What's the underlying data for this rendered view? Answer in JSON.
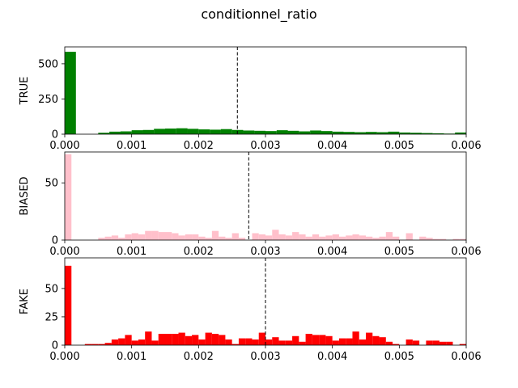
{
  "figure": {
    "title": "conditionnel_ratio"
  },
  "chart_data": [
    {
      "type": "bar",
      "ylabel": "TRUE",
      "color": "#008000",
      "xlim": [
        0,
        0.006
      ],
      "ylim": [
        0,
        620
      ],
      "x_ticks": [
        "0.000",
        "0.001",
        "0.002",
        "0.003",
        "0.004",
        "0.005",
        "0.006"
      ],
      "y_ticks": [
        0,
        250,
        500
      ],
      "bin_width": 0.000167,
      "bins": [
        [
          0.0,
          585
        ],
        [
          0.000167,
          0
        ],
        [
          0.000333,
          0
        ],
        [
          0.0005,
          10
        ],
        [
          0.000667,
          18
        ],
        [
          0.000833,
          20
        ],
        [
          0.001,
          28
        ],
        [
          0.001167,
          30
        ],
        [
          0.001333,
          38
        ],
        [
          0.0015,
          40
        ],
        [
          0.001667,
          42
        ],
        [
          0.001833,
          38
        ],
        [
          0.002,
          34
        ],
        [
          0.002167,
          32
        ],
        [
          0.002333,
          36
        ],
        [
          0.0025,
          30
        ],
        [
          0.002667,
          26
        ],
        [
          0.002833,
          24
        ],
        [
          0.003,
          22
        ],
        [
          0.003167,
          28
        ],
        [
          0.003333,
          24
        ],
        [
          0.0035,
          20
        ],
        [
          0.003667,
          26
        ],
        [
          0.003833,
          22
        ],
        [
          0.004,
          18
        ],
        [
          0.004167,
          16
        ],
        [
          0.004333,
          14
        ],
        [
          0.0045,
          16
        ],
        [
          0.004667,
          14
        ],
        [
          0.004833,
          18
        ],
        [
          0.005,
          12
        ],
        [
          0.005167,
          10
        ],
        [
          0.005333,
          8
        ],
        [
          0.0055,
          6
        ],
        [
          0.005667,
          4
        ],
        [
          0.005833,
          12
        ]
      ],
      "mean_line": 0.00258
    },
    {
      "type": "bar",
      "ylabel": "BIASED",
      "color": "#ffc0cb",
      "xlim": [
        0,
        0.006
      ],
      "ylim": [
        0,
        77
      ],
      "x_ticks": [
        "0.000",
        "0.001",
        "0.002",
        "0.003",
        "0.004",
        "0.005",
        "0.006"
      ],
      "y_ticks": [
        0,
        50
      ],
      "bin_width": 0.0001,
      "bins": [
        [
          0.0,
          75
        ],
        [
          0.0001,
          0
        ],
        [
          0.0002,
          0
        ],
        [
          0.0003,
          0
        ],
        [
          0.0004,
          0
        ],
        [
          0.0005,
          2
        ],
        [
          0.0006,
          3
        ],
        [
          0.0007,
          4
        ],
        [
          0.0008,
          2
        ],
        [
          0.0009,
          5
        ],
        [
          0.001,
          6
        ],
        [
          0.0011,
          5
        ],
        [
          0.0012,
          8
        ],
        [
          0.0013,
          8
        ],
        [
          0.0014,
          7
        ],
        [
          0.0015,
          7
        ],
        [
          0.0016,
          6
        ],
        [
          0.0017,
          4
        ],
        [
          0.0018,
          5
        ],
        [
          0.0019,
          5
        ],
        [
          0.002,
          3
        ],
        [
          0.0021,
          2
        ],
        [
          0.0022,
          8
        ],
        [
          0.0023,
          3
        ],
        [
          0.0024,
          2
        ],
        [
          0.0025,
          6
        ],
        [
          0.0026,
          2
        ],
        [
          0.0027,
          0
        ],
        [
          0.0028,
          6
        ],
        [
          0.0029,
          5
        ],
        [
          0.003,
          4
        ],
        [
          0.0031,
          9
        ],
        [
          0.0032,
          5
        ],
        [
          0.0033,
          4
        ],
        [
          0.0034,
          7
        ],
        [
          0.0035,
          5
        ],
        [
          0.0036,
          3
        ],
        [
          0.0037,
          5
        ],
        [
          0.0038,
          3
        ],
        [
          0.0039,
          4
        ],
        [
          0.004,
          5
        ],
        [
          0.0041,
          3
        ],
        [
          0.0042,
          4
        ],
        [
          0.0043,
          5
        ],
        [
          0.0044,
          4
        ],
        [
          0.0045,
          3
        ],
        [
          0.0046,
          2
        ],
        [
          0.0047,
          3
        ],
        [
          0.0048,
          7
        ],
        [
          0.0049,
          3
        ],
        [
          0.005,
          0
        ],
        [
          0.0051,
          6
        ],
        [
          0.0052,
          0
        ],
        [
          0.0053,
          3
        ],
        [
          0.0054,
          2
        ],
        [
          0.0055,
          1
        ],
        [
          0.0056,
          1
        ],
        [
          0.0057,
          0
        ],
        [
          0.0058,
          1
        ],
        [
          0.0059,
          1
        ]
      ],
      "mean_line": 0.00275
    },
    {
      "type": "bar",
      "ylabel": "FAKE",
      "color": "#ff0000",
      "xlim": [
        0,
        0.006
      ],
      "ylim": [
        0,
        77
      ],
      "x_ticks": [
        "0.000",
        "0.001",
        "0.002",
        "0.003",
        "0.004",
        "0.005",
        "0.006"
      ],
      "y_ticks": [
        0,
        25,
        50
      ],
      "bin_width": 0.0001,
      "bins": [
        [
          0.0,
          70
        ],
        [
          0.0001,
          0
        ],
        [
          0.0002,
          0
        ],
        [
          0.0003,
          1
        ],
        [
          0.0004,
          1
        ],
        [
          0.0005,
          1
        ],
        [
          0.0006,
          2
        ],
        [
          0.0007,
          5
        ],
        [
          0.0008,
          6
        ],
        [
          0.0009,
          9
        ],
        [
          0.001,
          4
        ],
        [
          0.0011,
          5
        ],
        [
          0.0012,
          12
        ],
        [
          0.0013,
          4
        ],
        [
          0.0014,
          10
        ],
        [
          0.0015,
          10
        ],
        [
          0.0016,
          10
        ],
        [
          0.0017,
          11
        ],
        [
          0.0018,
          8
        ],
        [
          0.0019,
          9
        ],
        [
          0.002,
          5
        ],
        [
          0.0021,
          11
        ],
        [
          0.0022,
          10
        ],
        [
          0.0023,
          9
        ],
        [
          0.0024,
          5
        ],
        [
          0.0025,
          1
        ],
        [
          0.0026,
          6
        ],
        [
          0.0027,
          6
        ],
        [
          0.0028,
          5
        ],
        [
          0.0029,
          11
        ],
        [
          0.003,
          5
        ],
        [
          0.0031,
          7
        ],
        [
          0.0032,
          4
        ],
        [
          0.0033,
          4
        ],
        [
          0.0034,
          8
        ],
        [
          0.0035,
          3
        ],
        [
          0.0036,
          10
        ],
        [
          0.0037,
          9
        ],
        [
          0.0038,
          9
        ],
        [
          0.0039,
          8
        ],
        [
          0.004,
          4
        ],
        [
          0.0041,
          6
        ],
        [
          0.0042,
          6
        ],
        [
          0.0043,
          12
        ],
        [
          0.0044,
          5
        ],
        [
          0.0045,
          11
        ],
        [
          0.0046,
          8
        ],
        [
          0.0047,
          7
        ],
        [
          0.0048,
          3
        ],
        [
          0.0049,
          1
        ],
        [
          0.005,
          0
        ],
        [
          0.0051,
          5
        ],
        [
          0.0052,
          4
        ],
        [
          0.0053,
          0
        ],
        [
          0.0054,
          4
        ],
        [
          0.0055,
          4
        ],
        [
          0.0056,
          3
        ],
        [
          0.0057,
          3
        ],
        [
          0.0058,
          0
        ],
        [
          0.0059,
          1
        ]
      ],
      "mean_line": 0.003
    }
  ]
}
